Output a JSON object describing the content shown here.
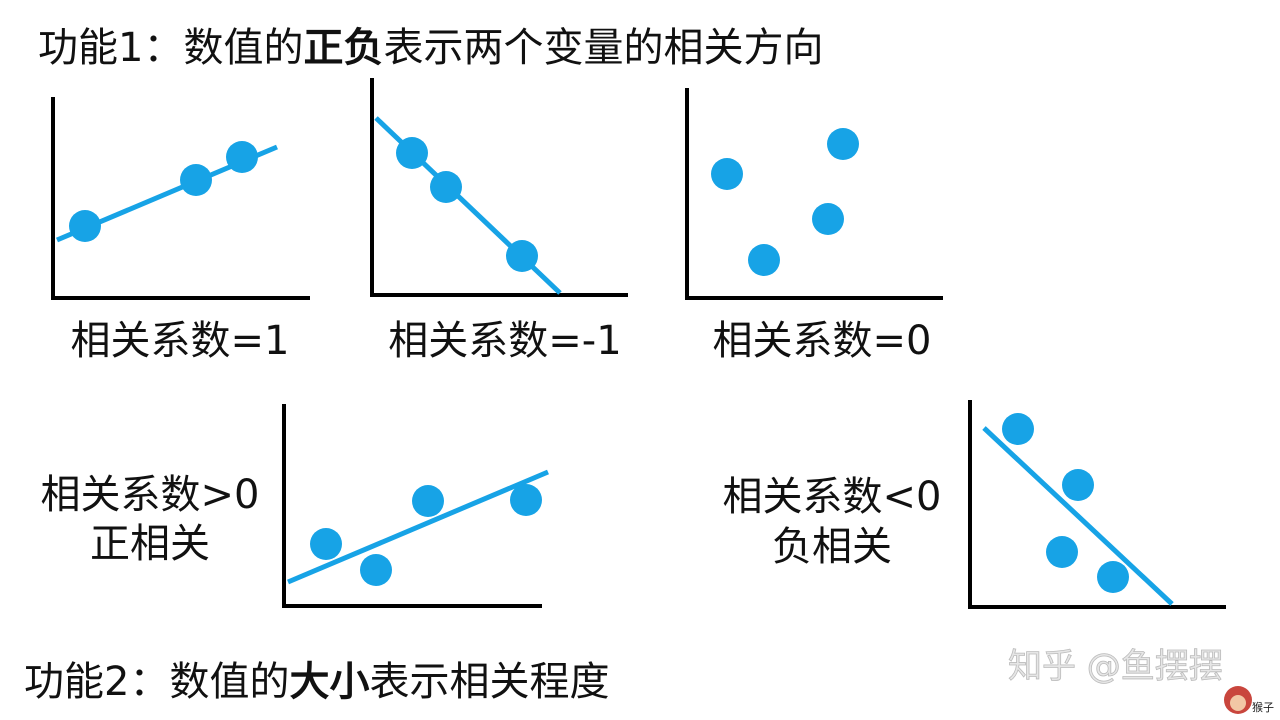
{
  "heading1": {
    "before": "功能1：数值的",
    "bold": "正负",
    "after": "表示两个变量的相关方向"
  },
  "panels": [
    {
      "label": "相关系数=1"
    },
    {
      "label": "相关系数=-1"
    },
    {
      "label": "相关系数=0"
    },
    {
      "label": "相关系数>0",
      "sublabel": "正相关"
    },
    {
      "label": "相关系数<0",
      "sublabel": "负相关"
    }
  ],
  "heading2": {
    "before": "功能2：数值的",
    "bold": "大小",
    "after": "表示相关程度"
  },
  "watermark": "知乎 @鱼摆摆",
  "logo": "猴子"
}
